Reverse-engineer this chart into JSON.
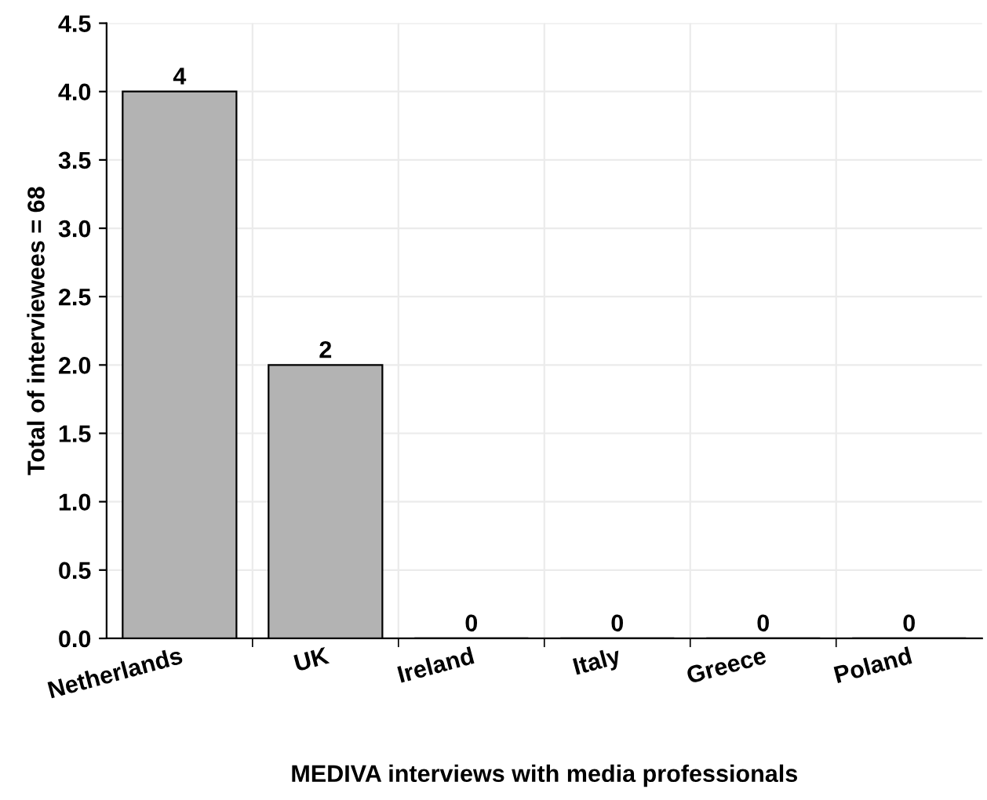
{
  "chart_data": {
    "type": "bar",
    "xlabel": "MEDIVA interviews with media professionals",
    "ylabel": "Total of interviewees = 68",
    "categories": [
      "Netherlands",
      "UK",
      "Ireland",
      "Italy",
      "Greece",
      "Poland"
    ],
    "values": [
      4,
      2,
      0,
      0,
      0,
      0
    ],
    "color": "#b3b3b3",
    "ylim": [
      0,
      4.5
    ],
    "yticks": [
      {
        "value": 0,
        "label": "0.0"
      },
      {
        "value": 0.5,
        "label": "0.5"
      },
      {
        "value": 1,
        "label": "1.0"
      },
      {
        "value": 1.5,
        "label": "1.5"
      },
      {
        "value": 2,
        "label": "2.0"
      },
      {
        "value": 2.5,
        "label": "2.5"
      },
      {
        "value": 3,
        "label": "3.0"
      },
      {
        "value": 3.5,
        "label": "3.5"
      },
      {
        "value": 4,
        "label": "4.0"
      },
      {
        "value": 4.5,
        "label": "4.5"
      }
    ],
    "grid": true,
    "data_labels": true
  }
}
